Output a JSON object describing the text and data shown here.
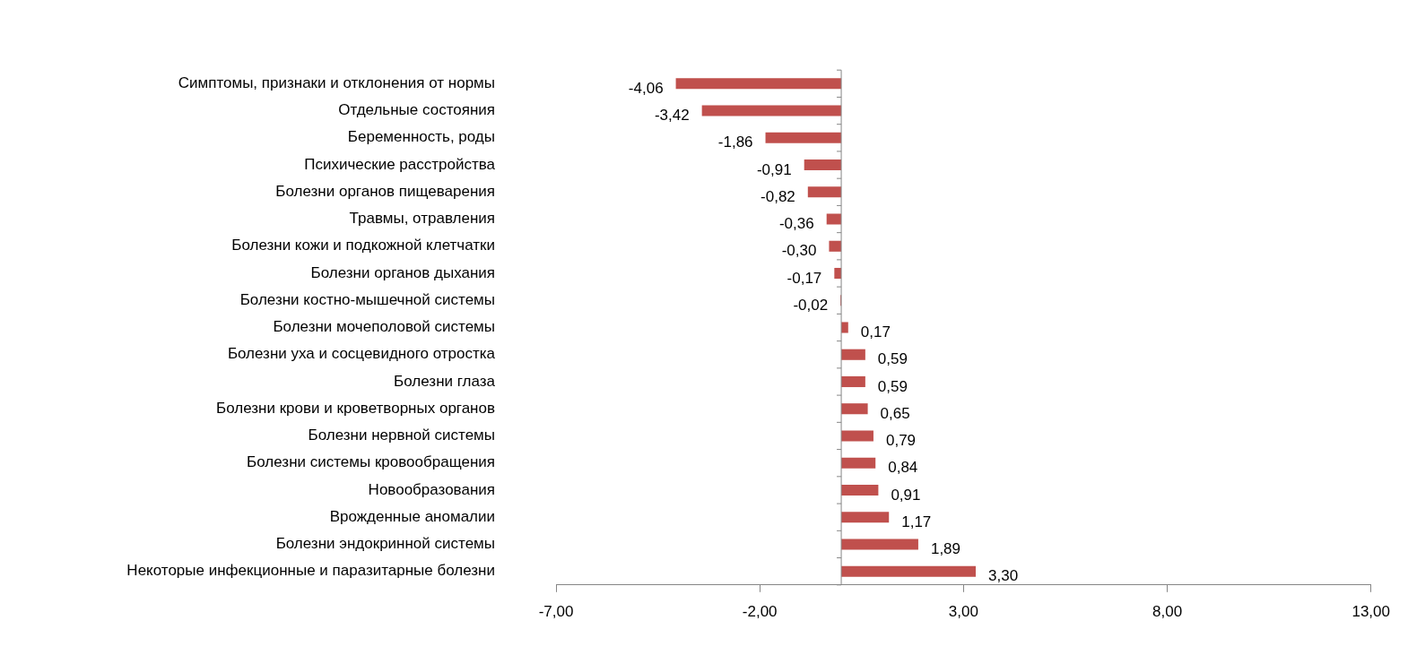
{
  "chart_data": {
    "type": "bar",
    "orientation": "horizontal",
    "categories": [
      "Симптомы, признаки и отклонения от нормы",
      "Отдельные состояния",
      "Беременность, роды",
      "Психические расстройства",
      "Болезни органов пищеварения",
      "Травмы, отравления",
      "Болезни кожи и подкожной клетчатки",
      "Болезни органов дыхания",
      "Болезни костно-мышечной системы",
      "Болезни мочеполовой системы",
      "Болезни уха и сосцевидного отростка",
      "Болезни глаза",
      "Болезни крови и кроветворных органов",
      "Болезни нервной системы",
      "Болезни системы кровообращения",
      "Новообразования",
      "Врожденные аномалии",
      "Болезни эндокринной системы",
      "Некоторые инфекционные и паразитарные болезни"
    ],
    "values": [
      -4.06,
      -3.42,
      -1.86,
      -0.91,
      -0.82,
      -0.36,
      -0.3,
      -0.17,
      -0.02,
      0.17,
      0.59,
      0.59,
      0.65,
      0.79,
      0.84,
      0.91,
      1.17,
      1.89,
      3.3
    ],
    "value_labels": [
      "-4,06",
      "-3,42",
      "-1,86",
      "-0,91",
      "-0,82",
      "-0,36",
      "-0,30",
      "-0,17",
      "-0,02",
      "0,17",
      "0,59",
      "0,59",
      "0,65",
      "0,79",
      "0,84",
      "0,91",
      "1,17",
      "1,89",
      "3,30"
    ],
    "color": "#c0504d",
    "xlim": [
      -7,
      13
    ],
    "xticks": [
      {
        "value": -7,
        "label": "-7,00"
      },
      {
        "value": -2,
        "label": "-2,00"
      },
      {
        "value": 3,
        "label": "3,00"
      },
      {
        "value": 8,
        "label": "8,00"
      },
      {
        "value": 13,
        "label": "13,00"
      }
    ],
    "grid": false,
    "legend": false
  }
}
